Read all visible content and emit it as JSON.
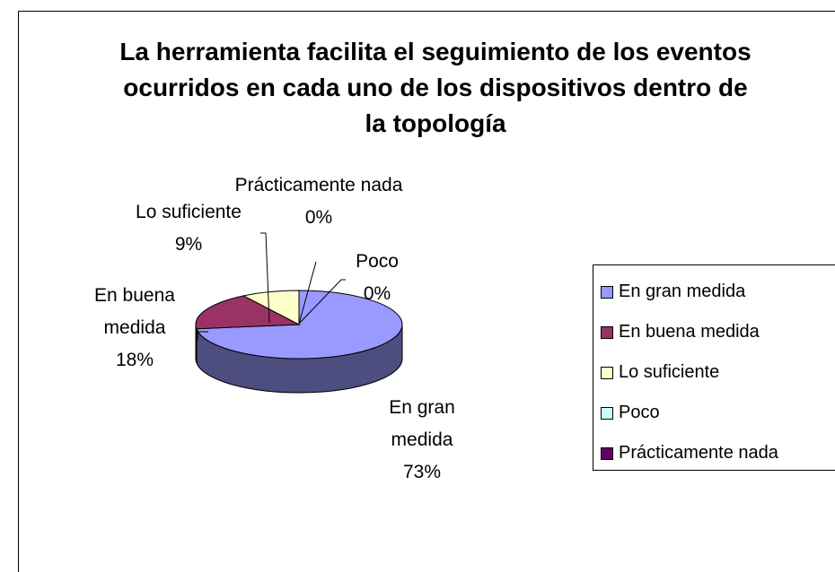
{
  "chart_data": {
    "type": "pie",
    "title": "La herramienta facilita el seguimiento de los eventos ocurridos en cada uno de los dispositivos dentro de la topología",
    "categories": [
      "En gran medida",
      "En buena medida",
      "Lo suficiente",
      "Poco",
      "Prácticamente nada"
    ],
    "values": [
      73,
      18,
      9,
      0,
      0
    ],
    "value_labels": [
      "73%",
      "18%",
      "9%",
      "0%",
      "0%"
    ],
    "colors": [
      "#9999ff",
      "#993366",
      "#ffffcc",
      "#ccffff",
      "#660066"
    ],
    "legend": "right"
  }
}
